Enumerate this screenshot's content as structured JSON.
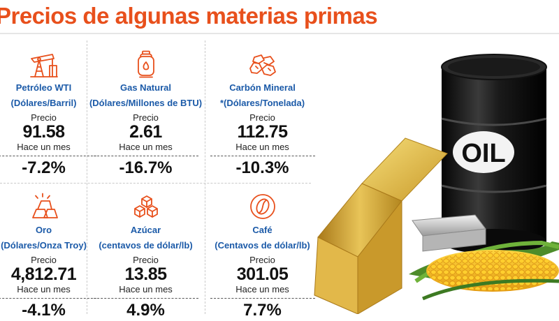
{
  "header": {
    "title": "Precios de algunas materias primas"
  },
  "labels": {
    "price": "Precio",
    "month_ago": "Hace un mes"
  },
  "barrel_text": "OIL",
  "colors": {
    "title": "#e8501c",
    "name": "#1b5aa8",
    "icon": "#e8501c"
  },
  "commodities": [
    {
      "name": "Petróleo WTI",
      "unit": "(Dólares/Barril)",
      "price": "91.58",
      "change": "-7.2%",
      "icon": "oil-pump-icon"
    },
    {
      "name": "Gas Natural",
      "unit": "(Dólares/Millones de BTU)",
      "price": "2.61",
      "change": "-16.7%",
      "icon": "gas-cylinder-icon"
    },
    {
      "name": "Carbón Mineral",
      "unit": "*(Dólares/Tonelada)",
      "price": "112.75",
      "change": "-10.3%",
      "icon": "coal-icon"
    },
    {
      "name": "Oro",
      "unit": "(Dólares/Onza Troy)",
      "price": "4,812.71",
      "change": "-4.1%",
      "icon": "gold-bars-icon"
    },
    {
      "name": "Azúcar",
      "unit": "(centavos de dólar/lb)",
      "price": "13.85",
      "change": "4.9%",
      "icon": "sugar-cubes-icon"
    },
    {
      "name": "Café",
      "unit": "(Centavos de dólar/lb)",
      "price": "301.05",
      "change": "7.7%",
      "icon": "coffee-bean-icon"
    }
  ]
}
